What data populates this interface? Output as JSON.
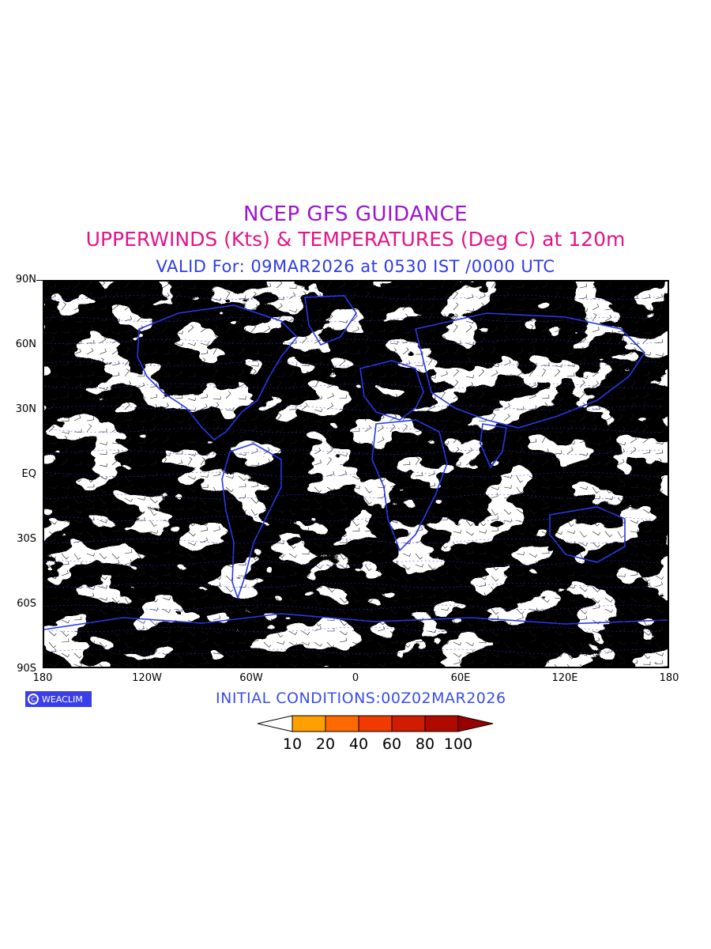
{
  "titles": {
    "line1": "NCEP GFS GUIDANCE",
    "line2": "UPPERWINDS (Kts) & TEMPERATURES (Deg C) at 120m",
    "line3": "VALID For: 09MAR2026 at 0530 IST /0000 UTC"
  },
  "axes": {
    "lat_labels": [
      "90N",
      "60N",
      "30N",
      "EQ",
      "30S",
      "60S",
      "90S"
    ],
    "lon_labels": [
      "180",
      "120W",
      "60W",
      "0",
      "60E",
      "120E",
      "180"
    ]
  },
  "footer": {
    "badge_text": "WEACLIM",
    "initial_conditions": "INITIAL CONDITIONS:00Z02MAR2026"
  },
  "legend": {
    "levels": [
      "10",
      "20",
      "40",
      "60",
      "80",
      "100"
    ],
    "colors": [
      "#ffffff",
      "#ff9f00",
      "#ff6a00",
      "#f03a00",
      "#d01c00",
      "#b00a00",
      "#9a0000"
    ]
  },
  "colors": {
    "title1": "#9b14d4",
    "title2": "#e0158a",
    "title3": "#2c3ce8",
    "coastline": "#2838f0",
    "temperature_labels": "#2838f0"
  }
}
